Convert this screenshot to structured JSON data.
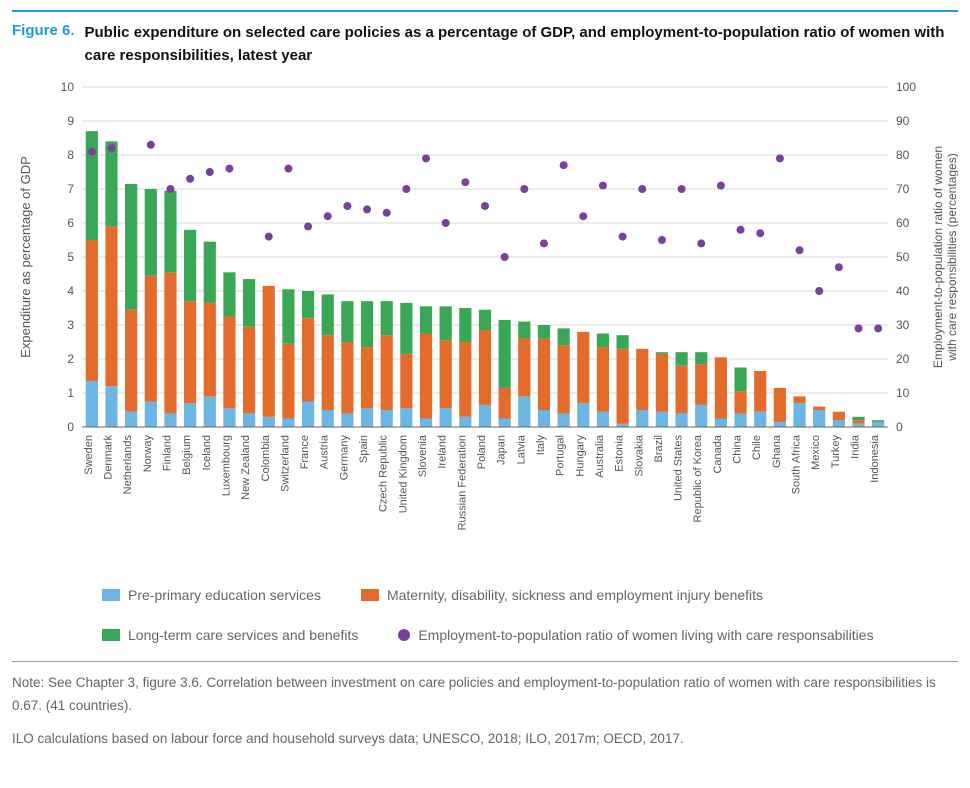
{
  "figure_label": "Figure 6.",
  "figure_title": "Public expenditure on selected care policies as a percentage of GDP, and employment-to-population ratio of women with care responsibilities, latest year",
  "note_text": "Note: See Chapter 3, figure 3.6. Correlation between investment on care policies and employment-to-population ratio of women with care responsibilities is 0.67. (41 countries).",
  "source_text": "ILO calculations based on labour force and household surveys data; UNESCO, 2018; ILO, 2017m; OECD, 2017.",
  "chart": {
    "type": "stacked-bar-with-scatter",
    "background_color": "#ffffff",
    "grid_color": "#d9d9d9",
    "axis_color": "#666666",
    "label_fontfamily": "Arial",
    "y_left": {
      "label": "Expenditure as percentage of GDP",
      "label_color": "#555555",
      "label_fontsize": 13,
      "min": 0,
      "max": 10,
      "tick_step": 1,
      "tick_color": "#555555",
      "tick_fontsize": 12
    },
    "y_right": {
      "label": "Employment-to-population ratio of women with care responsibilities (percentages)",
      "label_color": "#555555",
      "label_fontsize": 12,
      "min": 0,
      "max": 100,
      "tick_step": 10,
      "tick_color": "#555555",
      "tick_fontsize": 12
    },
    "x": {
      "label_fontsize": 11,
      "label_color": "#555555",
      "label_rotation": -90
    },
    "series_colors": {
      "pre_primary": "#6cb6e4",
      "maternity": "#e36c2c",
      "long_term": "#3aa757",
      "ratio_dot": "#7b3f9d"
    },
    "dot_radius": 4,
    "bar_width_ratio": 0.62,
    "legend": [
      {
        "key": "pre_primary",
        "label": "Pre-primary education services",
        "shape": "square"
      },
      {
        "key": "maternity",
        "label": "Maternity, disability, sickness and employment injury benefits",
        "shape": "square"
      },
      {
        "key": "long_term",
        "label": "Long-term care services and benefits",
        "shape": "square"
      },
      {
        "key": "ratio_dot",
        "label": "Employment-to-population ratio of women living with care responsabilities",
        "shape": "dot"
      }
    ],
    "categories": [
      "Sweden",
      "Denmark",
      "Netherlands",
      "Norway",
      "Finland",
      "Belgium",
      "Iceland",
      "Luxembourg",
      "New Zealand",
      "Colombia",
      "Switzerland",
      "France",
      "Austria",
      "Germany",
      "Spain",
      "Czech Republic",
      "United Kingdom",
      "Slovenia",
      "Ireland",
      "Russian Federation",
      "Poland",
      "Japan",
      "Latvia",
      "Italy",
      "Portugal",
      "Hungary",
      "Australia",
      "Estonia",
      "Slovakia",
      "Brazil",
      "United States",
      "Republic of Korea",
      "Canada",
      "China",
      "Chile",
      "Ghana",
      "South Africa",
      "Mexico",
      "Turkey",
      "India",
      "Indonesia"
    ],
    "stacks": {
      "pre_primary": [
        1.35,
        1.2,
        0.45,
        0.75,
        0.4,
        0.7,
        0.9,
        0.55,
        0.4,
        0.3,
        0.25,
        0.75,
        0.5,
        0.4,
        0.55,
        0.5,
        0.55,
        0.25,
        0.55,
        0.3,
        0.65,
        0.25,
        0.9,
        0.5,
        0.4,
        0.7,
        0.45,
        0.1,
        0.5,
        0.45,
        0.4,
        0.65,
        0.25,
        0.4,
        0.45,
        0.15,
        0.7,
        0.5,
        0.2,
        0.1,
        0.15
      ],
      "maternity": [
        4.15,
        4.7,
        3.0,
        3.7,
        4.15,
        3.0,
        2.75,
        2.7,
        2.55,
        3.85,
        2.2,
        2.45,
        2.2,
        2.1,
        1.8,
        2.2,
        1.6,
        2.5,
        2.0,
        2.2,
        2.2,
        0.9,
        1.7,
        2.1,
        2.0,
        2.1,
        1.9,
        2.2,
        1.8,
        1.7,
        1.4,
        1.2,
        1.8,
        0.65,
        1.2,
        1.0,
        0.2,
        0.1,
        0.25,
        0.1,
        0.0
      ],
      "long_term": [
        3.2,
        2.5,
        3.7,
        2.55,
        2.4,
        2.1,
        1.8,
        1.3,
        1.4,
        0.0,
        1.6,
        0.8,
        1.2,
        1.2,
        1.35,
        1.0,
        1.5,
        0.8,
        1.0,
        1.0,
        0.6,
        2.0,
        0.5,
        0.4,
        0.5,
        0.0,
        0.4,
        0.4,
        0.0,
        0.05,
        0.4,
        0.35,
        0.0,
        0.7,
        0.0,
        0.0,
        0.0,
        0.0,
        0.0,
        0.1,
        0.05
      ]
    },
    "scatter_ratio": [
      81,
      82,
      null,
      83,
      70,
      73,
      75,
      76,
      null,
      56,
      76,
      59,
      62,
      65,
      64,
      63,
      70,
      79,
      60,
      72,
      65,
      50,
      70,
      54,
      77,
      62,
      71,
      56,
      70,
      55,
      70,
      54,
      71,
      58,
      57,
      79,
      52,
      40,
      47,
      29,
      29
    ]
  }
}
